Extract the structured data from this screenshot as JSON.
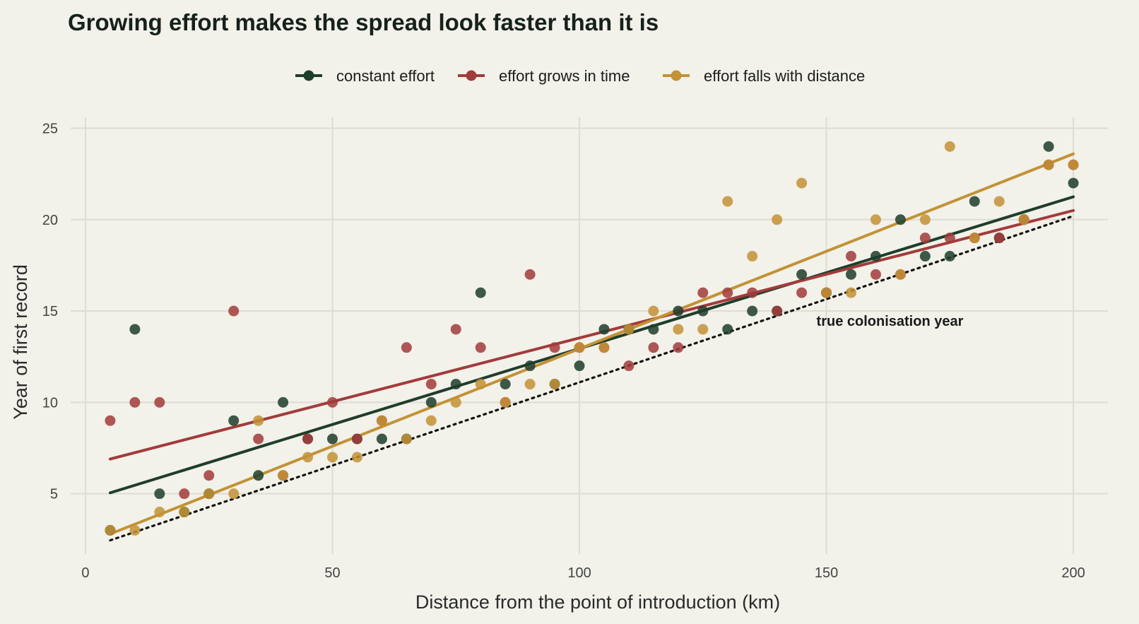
{
  "chart_data": {
    "type": "scatter",
    "title": "Growing effort makes the spread look faster than it is",
    "xlabel": "Distance from the point of introduction (km)",
    "ylabel": "Year of first record",
    "xlim": [
      -3,
      207
    ],
    "ylim": [
      1.7,
      25.6
    ],
    "x_ticks": [
      0,
      50,
      100,
      150,
      200
    ],
    "y_ticks": [
      5,
      10,
      15,
      20,
      25
    ],
    "grid": true,
    "legend_position": "top",
    "series": [
      {
        "name": "constant effort",
        "color": "#1f3d2b",
        "points": [
          [
            5,
            3
          ],
          [
            10,
            14
          ],
          [
            15,
            5
          ],
          [
            20,
            4
          ],
          [
            25,
            5
          ],
          [
            30,
            9
          ],
          [
            35,
            6
          ],
          [
            40,
            10
          ],
          [
            45,
            8
          ],
          [
            50,
            8
          ],
          [
            55,
            8
          ],
          [
            60,
            8
          ],
          [
            65,
            8
          ],
          [
            70,
            10
          ],
          [
            75,
            11
          ],
          [
            80,
            16
          ],
          [
            85,
            11
          ],
          [
            90,
            12
          ],
          [
            95,
            11
          ],
          [
            100,
            12
          ],
          [
            105,
            14
          ],
          [
            110,
            14
          ],
          [
            115,
            14
          ],
          [
            120,
            15
          ],
          [
            125,
            15
          ],
          [
            130,
            14
          ],
          [
            135,
            15
          ],
          [
            140,
            15
          ],
          [
            145,
            17
          ],
          [
            150,
            16
          ],
          [
            155,
            17
          ],
          [
            160,
            18
          ],
          [
            165,
            20
          ],
          [
            170,
            18
          ],
          [
            175,
            18
          ],
          [
            180,
            21
          ],
          [
            185,
            19
          ],
          [
            190,
            20
          ],
          [
            195,
            24
          ],
          [
            200,
            22
          ]
        ],
        "fit": [
          [
            5,
            5.05
          ],
          [
            200,
            21.25
          ]
        ]
      },
      {
        "name": "effort grows in time",
        "color": "#a23b3b",
        "points": [
          [
            5,
            9
          ],
          [
            10,
            10
          ],
          [
            15,
            10
          ],
          [
            20,
            5
          ],
          [
            25,
            6
          ],
          [
            30,
            15
          ],
          [
            35,
            8
          ],
          [
            40,
            6
          ],
          [
            45,
            8
          ],
          [
            50,
            10
          ],
          [
            55,
            8
          ],
          [
            60,
            9
          ],
          [
            65,
            13
          ],
          [
            70,
            11
          ],
          [
            75,
            14
          ],
          [
            80,
            13
          ],
          [
            85,
            10
          ],
          [
            90,
            17
          ],
          [
            95,
            13
          ],
          [
            100,
            13
          ],
          [
            105,
            13
          ],
          [
            110,
            12
          ],
          [
            115,
            13
          ],
          [
            120,
            13
          ],
          [
            125,
            16
          ],
          [
            130,
            16
          ],
          [
            135,
            16
          ],
          [
            140,
            15
          ],
          [
            145,
            16
          ],
          [
            150,
            16
          ],
          [
            155,
            18
          ],
          [
            160,
            17
          ],
          [
            165,
            17
          ],
          [
            170,
            19
          ],
          [
            175,
            19
          ],
          [
            180,
            19
          ],
          [
            185,
            19
          ],
          [
            190,
            20
          ],
          [
            195,
            23
          ],
          [
            200,
            23
          ]
        ],
        "fit": [
          [
            5,
            6.9
          ],
          [
            200,
            20.5
          ]
        ]
      },
      {
        "name": "effort falls with distance",
        "color": "#c39235",
        "points": [
          [
            5,
            3
          ],
          [
            10,
            3
          ],
          [
            15,
            4
          ],
          [
            20,
            4
          ],
          [
            25,
            5
          ],
          [
            30,
            5
          ],
          [
            35,
            9
          ],
          [
            40,
            6
          ],
          [
            45,
            7
          ],
          [
            50,
            7
          ],
          [
            55,
            7
          ],
          [
            60,
            9
          ],
          [
            65,
            8
          ],
          [
            70,
            9
          ],
          [
            75,
            10
          ],
          [
            80,
            11
          ],
          [
            85,
            10
          ],
          [
            90,
            11
          ],
          [
            95,
            11
          ],
          [
            100,
            13
          ],
          [
            105,
            13
          ],
          [
            110,
            14
          ],
          [
            115,
            15
          ],
          [
            120,
            14
          ],
          [
            125,
            14
          ],
          [
            130,
            21
          ],
          [
            135,
            18
          ],
          [
            140,
            20
          ],
          [
            145,
            22
          ],
          [
            150,
            16
          ],
          [
            155,
            16
          ],
          [
            160,
            20
          ],
          [
            165,
            17
          ],
          [
            170,
            20
          ],
          [
            175,
            24
          ],
          [
            180,
            19
          ],
          [
            185,
            21
          ],
          [
            190,
            20
          ],
          [
            195,
            23
          ],
          [
            200,
            23
          ]
        ],
        "fit": [
          [
            5,
            2.8
          ],
          [
            200,
            23.6
          ]
        ]
      }
    ],
    "reference_line": {
      "label": "true colonisation year",
      "style": "dotted",
      "color": "#111111",
      "points": [
        [
          5,
          2.45
        ],
        [
          200,
          20.2
        ]
      ]
    }
  }
}
